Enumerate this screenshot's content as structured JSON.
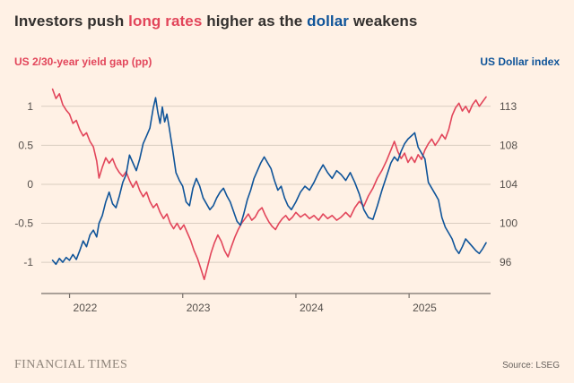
{
  "title": {
    "prefix": "Investors push ",
    "highlight_red": "long rates",
    "middle": " higher as the ",
    "highlight_blue": "dollar",
    "suffix": " weakens"
  },
  "axis_titles": {
    "left": "US 2/30-year yield gap (pp)",
    "right": "US Dollar index"
  },
  "footer": {
    "brand": "FINANCIAL TIMES",
    "source": "Source: LSEG"
  },
  "colors": {
    "background": "#FFF1E5",
    "red": "#E2455A",
    "blue": "#0F5499",
    "grid": "#D9CDC0",
    "axis_line": "#77706B",
    "tick_text": "#55504C",
    "title_text": "#33302E"
  },
  "chart_data": {
    "type": "line",
    "title": "Investors push long rates higher as the dollar weakens",
    "x_domain": [
      2021.75,
      2025.72
    ],
    "x_ticks": [
      2022,
      2023,
      2024,
      2025
    ],
    "x_tick_labels": [
      "2022",
      "2023",
      "2024",
      "2025"
    ],
    "grid": "horizontal",
    "legend_position": "axis-titles",
    "left_axis": {
      "label": "US 2/30-year yield gap (pp)",
      "ticks": [
        -1,
        -0.5,
        0,
        0.5,
        1
      ],
      "tick_labels": [
        "-1",
        "-0.5",
        "0",
        "0.5",
        "1"
      ],
      "range": [
        -1.4,
        1.33
      ]
    },
    "right_axis": {
      "label": "US Dollar index",
      "ticks": [
        96,
        100,
        104,
        108,
        113
      ],
      "tick_labels": [
        "96",
        "100",
        "104",
        "108",
        "113"
      ]
    },
    "series": [
      {
        "name": "US 2/30-year yield gap (pp)",
        "axis": "left",
        "color": "#E2455A",
        "points": [
          [
            2021.85,
            1.22
          ],
          [
            2021.88,
            1.1
          ],
          [
            2021.91,
            1.16
          ],
          [
            2021.94,
            1.02
          ],
          [
            2021.97,
            0.95
          ],
          [
            2022.0,
            0.9
          ],
          [
            2022.03,
            0.78
          ],
          [
            2022.06,
            0.82
          ],
          [
            2022.09,
            0.7
          ],
          [
            2022.12,
            0.62
          ],
          [
            2022.15,
            0.66
          ],
          [
            2022.18,
            0.55
          ],
          [
            2022.21,
            0.48
          ],
          [
            2022.24,
            0.3
          ],
          [
            2022.26,
            0.08
          ],
          [
            2022.29,
            0.22
          ],
          [
            2022.32,
            0.34
          ],
          [
            2022.35,
            0.27
          ],
          [
            2022.38,
            0.33
          ],
          [
            2022.41,
            0.22
          ],
          [
            2022.44,
            0.15
          ],
          [
            2022.47,
            0.1
          ],
          [
            2022.5,
            0.16
          ],
          [
            2022.53,
            0.05
          ],
          [
            2022.56,
            -0.04
          ],
          [
            2022.59,
            0.04
          ],
          [
            2022.62,
            -0.08
          ],
          [
            2022.65,
            -0.16
          ],
          [
            2022.68,
            -0.1
          ],
          [
            2022.71,
            -0.22
          ],
          [
            2022.74,
            -0.3
          ],
          [
            2022.77,
            -0.25
          ],
          [
            2022.8,
            -0.36
          ],
          [
            2022.83,
            -0.44
          ],
          [
            2022.86,
            -0.38
          ],
          [
            2022.89,
            -0.5
          ],
          [
            2022.92,
            -0.57
          ],
          [
            2022.95,
            -0.5
          ],
          [
            2022.98,
            -0.58
          ],
          [
            2023.01,
            -0.52
          ],
          [
            2023.04,
            -0.62
          ],
          [
            2023.07,
            -0.72
          ],
          [
            2023.1,
            -0.85
          ],
          [
            2023.13,
            -0.95
          ],
          [
            2023.16,
            -1.08
          ],
          [
            2023.19,
            -1.22
          ],
          [
            2023.22,
            -1.05
          ],
          [
            2023.25,
            -0.88
          ],
          [
            2023.28,
            -0.75
          ],
          [
            2023.31,
            -0.65
          ],
          [
            2023.34,
            -0.73
          ],
          [
            2023.37,
            -0.85
          ],
          [
            2023.4,
            -0.93
          ],
          [
            2023.43,
            -0.8
          ],
          [
            2023.46,
            -0.68
          ],
          [
            2023.49,
            -0.58
          ],
          [
            2023.52,
            -0.5
          ],
          [
            2023.55,
            -0.44
          ],
          [
            2023.58,
            -0.38
          ],
          [
            2023.61,
            -0.46
          ],
          [
            2023.64,
            -0.42
          ],
          [
            2023.67,
            -0.34
          ],
          [
            2023.7,
            -0.3
          ],
          [
            2023.73,
            -0.4
          ],
          [
            2023.76,
            -0.48
          ],
          [
            2023.79,
            -0.54
          ],
          [
            2023.82,
            -0.58
          ],
          [
            2023.85,
            -0.5
          ],
          [
            2023.88,
            -0.44
          ],
          [
            2023.91,
            -0.4
          ],
          [
            2023.94,
            -0.46
          ],
          [
            2023.97,
            -0.42
          ],
          [
            2024.0,
            -0.36
          ],
          [
            2024.04,
            -0.42
          ],
          [
            2024.08,
            -0.38
          ],
          [
            2024.12,
            -0.44
          ],
          [
            2024.16,
            -0.4
          ],
          [
            2024.2,
            -0.46
          ],
          [
            2024.24,
            -0.38
          ],
          [
            2024.28,
            -0.44
          ],
          [
            2024.32,
            -0.4
          ],
          [
            2024.36,
            -0.46
          ],
          [
            2024.4,
            -0.42
          ],
          [
            2024.44,
            -0.36
          ],
          [
            2024.48,
            -0.42
          ],
          [
            2024.52,
            -0.3
          ],
          [
            2024.56,
            -0.22
          ],
          [
            2024.6,
            -0.28
          ],
          [
            2024.64,
            -0.15
          ],
          [
            2024.68,
            -0.05
          ],
          [
            2024.72,
            0.08
          ],
          [
            2024.76,
            0.18
          ],
          [
            2024.8,
            0.3
          ],
          [
            2024.84,
            0.44
          ],
          [
            2024.87,
            0.55
          ],
          [
            2024.9,
            0.42
          ],
          [
            2024.93,
            0.33
          ],
          [
            2024.96,
            0.4
          ],
          [
            2024.99,
            0.28
          ],
          [
            2025.02,
            0.35
          ],
          [
            2025.05,
            0.28
          ],
          [
            2025.08,
            0.38
          ],
          [
            2025.11,
            0.32
          ],
          [
            2025.14,
            0.44
          ],
          [
            2025.17,
            0.52
          ],
          [
            2025.2,
            0.58
          ],
          [
            2025.23,
            0.5
          ],
          [
            2025.26,
            0.56
          ],
          [
            2025.29,
            0.64
          ],
          [
            2025.32,
            0.58
          ],
          [
            2025.35,
            0.7
          ],
          [
            2025.38,
            0.88
          ],
          [
            2025.41,
            0.98
          ],
          [
            2025.44,
            1.04
          ],
          [
            2025.47,
            0.94
          ],
          [
            2025.5,
            1.0
          ],
          [
            2025.53,
            0.92
          ],
          [
            2025.56,
            1.02
          ],
          [
            2025.59,
            1.08
          ],
          [
            2025.62,
            1.0
          ],
          [
            2025.65,
            1.06
          ],
          [
            2025.68,
            1.12
          ]
        ]
      },
      {
        "name": "US Dollar index",
        "axis": "right",
        "color": "#0F5499",
        "points": [
          [
            2021.85,
            96.2
          ],
          [
            2021.88,
            95.8
          ],
          [
            2021.91,
            96.4
          ],
          [
            2021.94,
            96.0
          ],
          [
            2021.97,
            96.5
          ],
          [
            2022.0,
            96.2
          ],
          [
            2022.03,
            96.8
          ],
          [
            2022.06,
            96.3
          ],
          [
            2022.09,
            97.2
          ],
          [
            2022.12,
            98.2
          ],
          [
            2022.15,
            97.6
          ],
          [
            2022.18,
            98.8
          ],
          [
            2022.21,
            99.3
          ],
          [
            2022.24,
            98.6
          ],
          [
            2022.26,
            100.0
          ],
          [
            2022.29,
            100.8
          ],
          [
            2022.32,
            102.2
          ],
          [
            2022.35,
            103.2
          ],
          [
            2022.38,
            102.0
          ],
          [
            2022.41,
            101.6
          ],
          [
            2022.44,
            102.8
          ],
          [
            2022.47,
            104.2
          ],
          [
            2022.5,
            105.0
          ],
          [
            2022.53,
            107.0
          ],
          [
            2022.56,
            106.2
          ],
          [
            2022.59,
            105.4
          ],
          [
            2022.62,
            106.6
          ],
          [
            2022.65,
            108.2
          ],
          [
            2022.68,
            109.2
          ],
          [
            2022.71,
            110.2
          ],
          [
            2022.74,
            112.8
          ],
          [
            2022.76,
            114.1
          ],
          [
            2022.78,
            112.2
          ],
          [
            2022.8,
            110.8
          ],
          [
            2022.82,
            112.9
          ],
          [
            2022.84,
            111.0
          ],
          [
            2022.86,
            112.0
          ],
          [
            2022.88,
            110.3
          ],
          [
            2022.91,
            107.6
          ],
          [
            2022.94,
            105.2
          ],
          [
            2022.97,
            104.4
          ],
          [
            2023.0,
            103.8
          ],
          [
            2023.03,
            102.2
          ],
          [
            2023.06,
            101.8
          ],
          [
            2023.09,
            103.6
          ],
          [
            2023.12,
            104.6
          ],
          [
            2023.15,
            103.8
          ],
          [
            2023.18,
            102.6
          ],
          [
            2023.21,
            102.0
          ],
          [
            2023.24,
            101.4
          ],
          [
            2023.27,
            101.8
          ],
          [
            2023.3,
            102.6
          ],
          [
            2023.33,
            103.2
          ],
          [
            2023.36,
            103.6
          ],
          [
            2023.39,
            102.8
          ],
          [
            2023.42,
            102.2
          ],
          [
            2023.45,
            101.2
          ],
          [
            2023.48,
            100.2
          ],
          [
            2023.51,
            99.8
          ],
          [
            2023.54,
            101.0
          ],
          [
            2023.57,
            102.4
          ],
          [
            2023.6,
            103.4
          ],
          [
            2023.63,
            104.6
          ],
          [
            2023.66,
            105.4
          ],
          [
            2023.69,
            106.2
          ],
          [
            2023.72,
            106.8
          ],
          [
            2023.75,
            106.2
          ],
          [
            2023.78,
            105.6
          ],
          [
            2023.81,
            104.4
          ],
          [
            2023.84,
            103.4
          ],
          [
            2023.87,
            103.8
          ],
          [
            2023.9,
            102.6
          ],
          [
            2023.93,
            101.8
          ],
          [
            2023.96,
            101.4
          ],
          [
            2024.0,
            102.2
          ],
          [
            2024.04,
            103.2
          ],
          [
            2024.08,
            103.8
          ],
          [
            2024.12,
            103.4
          ],
          [
            2024.16,
            104.2
          ],
          [
            2024.2,
            105.2
          ],
          [
            2024.24,
            106.0
          ],
          [
            2024.28,
            105.2
          ],
          [
            2024.32,
            104.6
          ],
          [
            2024.36,
            105.4
          ],
          [
            2024.4,
            105.0
          ],
          [
            2024.44,
            104.4
          ],
          [
            2024.48,
            105.2
          ],
          [
            2024.52,
            104.2
          ],
          [
            2024.56,
            103.0
          ],
          [
            2024.6,
            101.4
          ],
          [
            2024.64,
            100.6
          ],
          [
            2024.68,
            100.4
          ],
          [
            2024.72,
            101.8
          ],
          [
            2024.76,
            103.4
          ],
          [
            2024.8,
            104.8
          ],
          [
            2024.84,
            106.2
          ],
          [
            2024.87,
            106.8
          ],
          [
            2024.9,
            106.4
          ],
          [
            2024.93,
            107.4
          ],
          [
            2024.96,
            108.2
          ],
          [
            2024.99,
            108.8
          ],
          [
            2025.02,
            109.2
          ],
          [
            2025.05,
            109.6
          ],
          [
            2025.08,
            107.8
          ],
          [
            2025.11,
            107.2
          ],
          [
            2025.14,
            106.6
          ],
          [
            2025.17,
            104.2
          ],
          [
            2025.2,
            103.6
          ],
          [
            2025.23,
            103.0
          ],
          [
            2025.26,
            102.4
          ],
          [
            2025.29,
            100.6
          ],
          [
            2025.32,
            99.6
          ],
          [
            2025.35,
            99.0
          ],
          [
            2025.38,
            98.4
          ],
          [
            2025.41,
            97.4
          ],
          [
            2025.44,
            96.9
          ],
          [
            2025.47,
            97.6
          ],
          [
            2025.5,
            98.4
          ],
          [
            2025.53,
            98.0
          ],
          [
            2025.56,
            97.6
          ],
          [
            2025.59,
            97.2
          ],
          [
            2025.62,
            96.9
          ],
          [
            2025.65,
            97.4
          ],
          [
            2025.68,
            98.0
          ]
        ]
      }
    ]
  }
}
